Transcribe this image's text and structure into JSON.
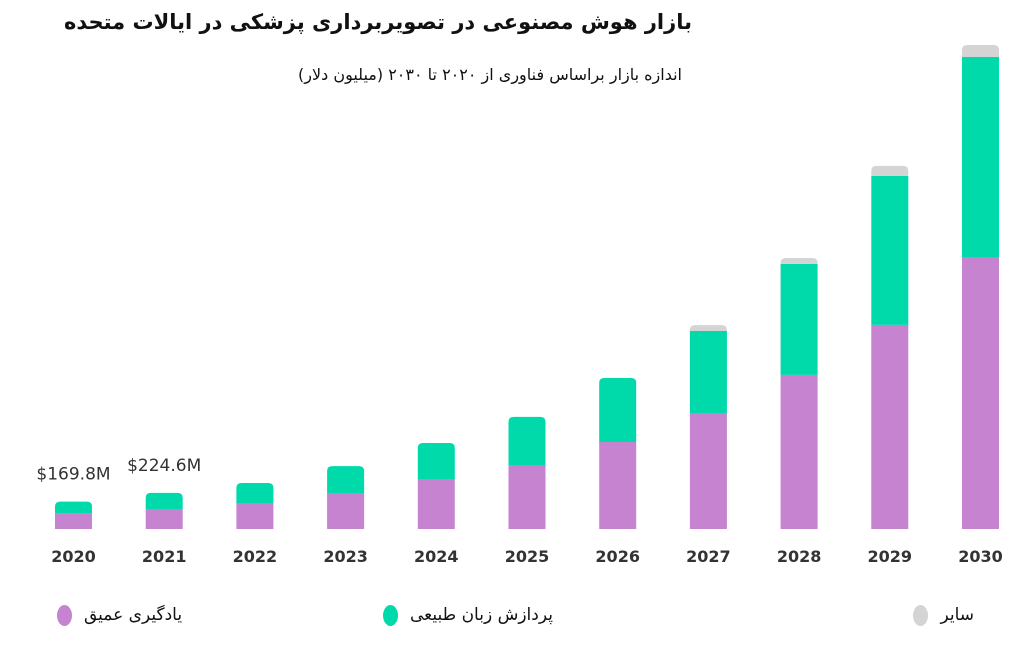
{
  "chart_data": {
    "type": "bar",
    "stacked": true,
    "title": "بازار هوش مصنوعی در تصویربرداری پزشکی در ایالات متحده",
    "subtitle": "اندازه بازار براساس فناوری از ۲۰۲۰ تا ۲۰۳۰ (میلیون دلار)",
    "xlabel": "",
    "ylabel": "",
    "ylim": [
      0,
      3000
    ],
    "grid": false,
    "legend_position": "bottom",
    "categories": [
      "2020",
      "2021",
      "2022",
      "2023",
      "2024",
      "2025",
      "2026",
      "2027",
      "2028",
      "2029",
      "2030"
    ],
    "series": [
      {
        "name": "یادگیری عمیق",
        "color": "#c583d0",
        "values": [
          97,
          124,
          161,
          223,
          310,
          397,
          539,
          719,
          955,
          1265,
          1686
        ]
      },
      {
        "name": "پردازش زبان طبیعی",
        "color": "#00d9aa",
        "values": [
          73,
          100,
          124,
          167,
          223,
          298,
          397,
          508,
          688,
          924,
          1240
        ]
      },
      {
        "name": "سایر",
        "color": "#d4d4d4",
        "values": [
          0,
          0,
          0,
          0,
          0,
          0,
          0,
          37,
          37,
          62,
          74
        ]
      }
    ],
    "annotations": [
      {
        "category": "2020",
        "text": "$169.8M"
      },
      {
        "category": "2021",
        "text": "$224.6M"
      }
    ]
  }
}
